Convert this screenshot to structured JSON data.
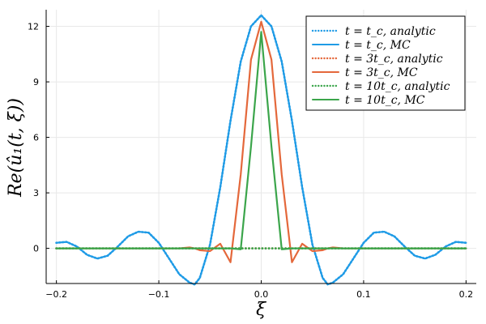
{
  "chart_data": {
    "type": "line",
    "xlabel": "ξ",
    "ylabel": "Re(û₁(t, ξ))",
    "xlim": [
      -0.21,
      0.21
    ],
    "ylim": [
      -1.9,
      12.9
    ],
    "xticks": [
      -0.2,
      -0.1,
      0.0,
      0.1,
      0.2
    ],
    "xtick_labels": [
      "−0.2",
      "−0.1",
      "0.0",
      "0.1",
      "0.2"
    ],
    "yticks": [
      0,
      3,
      6,
      9,
      12
    ],
    "ytick_labels": [
      "0",
      "3",
      "6",
      "9",
      "12"
    ],
    "grid": true,
    "legend_position": "top-right",
    "colors": {
      "blue": "#1f9be6",
      "orange": "#e4683b",
      "green": "#3ba54b",
      "grid": "#e8e8e8",
      "axis": "#000000"
    },
    "x": [
      -0.2,
      -0.19,
      -0.18,
      -0.17,
      -0.16,
      -0.15,
      -0.14,
      -0.13,
      -0.12,
      -0.11,
      -0.1,
      -0.09,
      -0.08,
      -0.07,
      -0.065,
      -0.06,
      -0.05,
      -0.04,
      -0.03,
      -0.02,
      -0.01,
      0.0,
      0.01,
      0.02,
      0.03,
      0.04,
      0.05,
      0.06,
      0.065,
      0.07,
      0.08,
      0.09,
      0.1,
      0.11,
      0.12,
      0.13,
      0.14,
      0.15,
      0.16,
      0.17,
      0.18,
      0.19,
      0.2
    ],
    "series": [
      {
        "name": "t = t_c, analytic",
        "color_key": "blue",
        "style": "dotted",
        "values": [
          0.3,
          0.35,
          0.1,
          -0.35,
          -0.55,
          -0.4,
          0.1,
          0.65,
          0.9,
          0.85,
          0.3,
          -0.55,
          -1.4,
          -1.85,
          -1.95,
          -1.6,
          0.2,
          3.3,
          6.9,
          10.1,
          12.0,
          12.6,
          12.0,
          10.1,
          6.9,
          3.3,
          0.2,
          -1.6,
          -1.95,
          -1.85,
          -1.4,
          -0.55,
          0.3,
          0.85,
          0.9,
          0.65,
          0.1,
          -0.4,
          -0.55,
          -0.35,
          0.1,
          0.35,
          0.3
        ]
      },
      {
        "name": "t = t_c, MC",
        "color_key": "blue",
        "style": "solid",
        "values": [
          0.3,
          0.35,
          0.1,
          -0.35,
          -0.55,
          -0.4,
          0.1,
          0.65,
          0.9,
          0.85,
          0.3,
          -0.55,
          -1.4,
          -1.85,
          -1.95,
          -1.6,
          0.2,
          3.3,
          6.9,
          10.1,
          12.0,
          12.6,
          12.0,
          10.1,
          6.9,
          3.3,
          0.2,
          -1.6,
          -1.95,
          -1.85,
          -1.4,
          -0.55,
          0.3,
          0.85,
          0.9,
          0.65,
          0.1,
          -0.4,
          -0.55,
          -0.35,
          0.1,
          0.35,
          0.3
        ]
      },
      {
        "name": "t = 3t_c, analytic",
        "color_key": "orange",
        "style": "dotted",
        "values": [
          0,
          0,
          0,
          0,
          0,
          0,
          0,
          0,
          0,
          0,
          0,
          0,
          0,
          0,
          0,
          0,
          0,
          0,
          0,
          0,
          0,
          0,
          0,
          0,
          0,
          0,
          0,
          0,
          0,
          0,
          0,
          0,
          0,
          0,
          0,
          0,
          0,
          0,
          0,
          0,
          0,
          0,
          0
        ]
      },
      {
        "name": "t = 3t_c, MC",
        "color_key": "orange",
        "style": "solid",
        "values": [
          0,
          0,
          0,
          0,
          0,
          0,
          0,
          0,
          0,
          0,
          0,
          0,
          0,
          0.05,
          0.0,
          -0.1,
          -0.15,
          0.25,
          -0.75,
          4.0,
          10.2,
          12.25,
          10.2,
          4.0,
          -0.75,
          0.25,
          -0.15,
          -0.1,
          0.0,
          0.05,
          0,
          0,
          0,
          0,
          0,
          0,
          0,
          0,
          0,
          0,
          0,
          0,
          0
        ]
      },
      {
        "name": "t = 10t_c, analytic",
        "color_key": "green",
        "style": "dotted",
        "values": [
          0,
          0,
          0,
          0,
          0,
          0,
          0,
          0,
          0,
          0,
          0,
          0,
          0,
          0,
          0,
          0,
          0,
          0,
          0,
          0,
          0,
          0,
          0,
          0,
          0,
          0,
          0,
          0,
          0,
          0,
          0,
          0,
          0,
          0,
          0,
          0,
          0,
          0,
          0,
          0,
          0,
          0,
          0
        ]
      },
      {
        "name": "t = 10t_c, MC",
        "color_key": "green",
        "style": "solid",
        "values": [
          0,
          0,
          0,
          0,
          0,
          0,
          0,
          0,
          0,
          0,
          0,
          0,
          0,
          0,
          0,
          0,
          0,
          0,
          0,
          -0.05,
          5.5,
          11.7,
          5.5,
          -0.05,
          0,
          0,
          0,
          0,
          0,
          0,
          0,
          0,
          0,
          0,
          0,
          0,
          0,
          0,
          0,
          0,
          0,
          0,
          0
        ]
      }
    ]
  }
}
